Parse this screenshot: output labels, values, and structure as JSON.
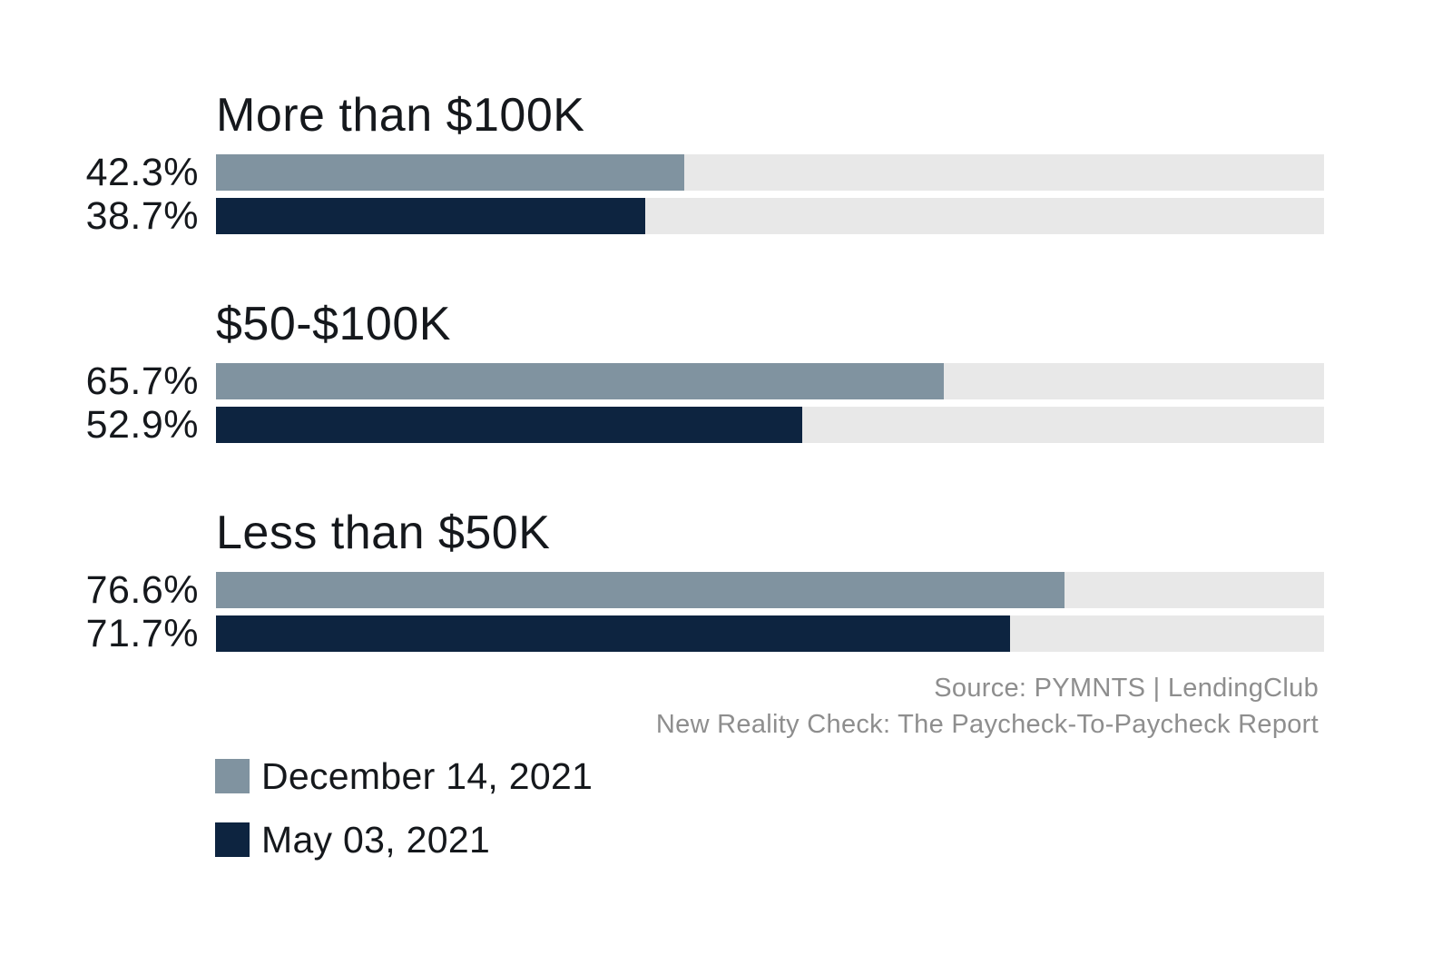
{
  "chart_data": {
    "type": "bar",
    "orientation": "horizontal",
    "title": "",
    "xlim": [
      0,
      100
    ],
    "unit": "%",
    "colors": {
      "series_dec": "#8093A0",
      "series_may": "#0D2440",
      "track": "#E8E8E8",
      "text": "#15181C",
      "source_text": "#8E8E8E"
    },
    "series_names": [
      "December 14, 2021",
      "May 03, 2021"
    ],
    "groups": [
      {
        "category": "More than $100K",
        "bars": [
          {
            "series": "December 14, 2021",
            "value": 42.3,
            "label": "42.3%"
          },
          {
            "series": "May 03, 2021",
            "value": 38.7,
            "label": "38.7%"
          }
        ]
      },
      {
        "category": "$50-$100K",
        "bars": [
          {
            "series": "December 14, 2021",
            "value": 65.7,
            "label": "65.7%"
          },
          {
            "series": "May 03, 2021",
            "value": 52.9,
            "label": "52.9%"
          }
        ]
      },
      {
        "category": "Less than $50K",
        "bars": [
          {
            "series": "December 14, 2021",
            "value": 76.6,
            "label": "76.6%"
          },
          {
            "series": "May 03, 2021",
            "value": 71.7,
            "label": "71.7%"
          }
        ]
      }
    ],
    "source": {
      "line1": "Source: PYMNTS  |  LendingClub",
      "line2": "New Reality Check: The Paycheck-To-Paycheck Report"
    },
    "legend": [
      {
        "label": "December 14, 2021",
        "color": "#8093A0"
      },
      {
        "label": "May 03, 2021",
        "color": "#0D2440"
      }
    ]
  }
}
